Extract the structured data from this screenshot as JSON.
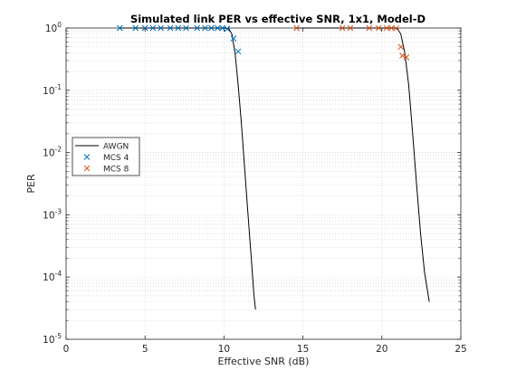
{
  "chart_data": {
    "type": "line",
    "title": "Simulated link PER vs effective SNR, 1x1, Model-D",
    "xlabel": "Effective SNR (dB)",
    "ylabel": "PER",
    "xlim": [
      0,
      25
    ],
    "ylim": [
      1e-05,
      1
    ],
    "yscale": "log",
    "grid": "major-minor-dotted",
    "legend_position": "middle-left",
    "x_ticks": [
      0,
      5,
      10,
      15,
      20,
      25
    ],
    "y_ticks": [
      {
        "base": "10",
        "exp": "0",
        "value": 1
      },
      {
        "base": "10",
        "exp": "-1",
        "value": 0.1
      },
      {
        "base": "10",
        "exp": "-2",
        "value": 0.01
      },
      {
        "base": "10",
        "exp": "-3",
        "value": 0.001
      },
      {
        "base": "10",
        "exp": "-4",
        "value": 0.0001
      },
      {
        "base": "10",
        "exp": "-5",
        "value": 1e-05
      }
    ],
    "series": [
      {
        "name": "AWGN",
        "kind": "line",
        "color": "#000000",
        "segments": [
          [
            {
              "x": 3.4,
              "y": 1.0
            },
            {
              "x": 10.0,
              "y": 1.0
            },
            {
              "x": 10.3,
              "y": 0.98
            },
            {
              "x": 10.5,
              "y": 0.8
            },
            {
              "x": 10.7,
              "y": 0.4
            },
            {
              "x": 10.9,
              "y": 0.12
            },
            {
              "x": 11.1,
              "y": 0.03
            },
            {
              "x": 11.3,
              "y": 0.006
            },
            {
              "x": 11.5,
              "y": 0.0012
            },
            {
              "x": 11.7,
              "y": 0.00025
            },
            {
              "x": 11.9,
              "y": 5e-05
            },
            {
              "x": 12.0,
              "y": 3e-05
            }
          ],
          [
            {
              "x": 14.6,
              "y": 1.0
            },
            {
              "x": 20.8,
              "y": 1.0
            },
            {
              "x": 21.0,
              "y": 0.97
            },
            {
              "x": 21.2,
              "y": 0.8
            },
            {
              "x": 21.45,
              "y": 0.4
            },
            {
              "x": 21.7,
              "y": 0.12
            },
            {
              "x": 21.95,
              "y": 0.02
            },
            {
              "x": 22.2,
              "y": 0.003
            },
            {
              "x": 22.45,
              "y": 0.0005
            },
            {
              "x": 22.7,
              "y": 0.00012
            },
            {
              "x": 23.0,
              "y": 4e-05
            }
          ]
        ]
      },
      {
        "name": "MCS 4",
        "kind": "marker",
        "color": "#0072bd",
        "points": [
          {
            "x": 3.4,
            "y": 1.0
          },
          {
            "x": 4.4,
            "y": 1.0
          },
          {
            "x": 5.0,
            "y": 1.0
          },
          {
            "x": 5.5,
            "y": 1.0
          },
          {
            "x": 6.0,
            "y": 1.0
          },
          {
            "x": 6.6,
            "y": 1.0
          },
          {
            "x": 7.1,
            "y": 1.0
          },
          {
            "x": 7.6,
            "y": 1.0
          },
          {
            "x": 8.3,
            "y": 1.0
          },
          {
            "x": 8.8,
            "y": 1.0
          },
          {
            "x": 9.2,
            "y": 1.0
          },
          {
            "x": 9.6,
            "y": 1.0
          },
          {
            "x": 9.9,
            "y": 1.0
          },
          {
            "x": 10.2,
            "y": 0.97
          },
          {
            "x": 10.6,
            "y": 0.68
          },
          {
            "x": 10.9,
            "y": 0.42
          }
        ]
      },
      {
        "name": "MCS 8",
        "kind": "marker",
        "color": "#d95319",
        "points": [
          {
            "x": 14.6,
            "y": 1.0
          },
          {
            "x": 17.5,
            "y": 1.0
          },
          {
            "x": 18.0,
            "y": 1.0
          },
          {
            "x": 19.2,
            "y": 1.0
          },
          {
            "x": 19.8,
            "y": 1.0
          },
          {
            "x": 20.3,
            "y": 1.0
          },
          {
            "x": 20.6,
            "y": 1.0
          },
          {
            "x": 20.9,
            "y": 0.99
          },
          {
            "x": 21.2,
            "y": 0.5
          },
          {
            "x": 21.3,
            "y": 0.36
          },
          {
            "x": 21.55,
            "y": 0.34
          }
        ]
      }
    ]
  }
}
